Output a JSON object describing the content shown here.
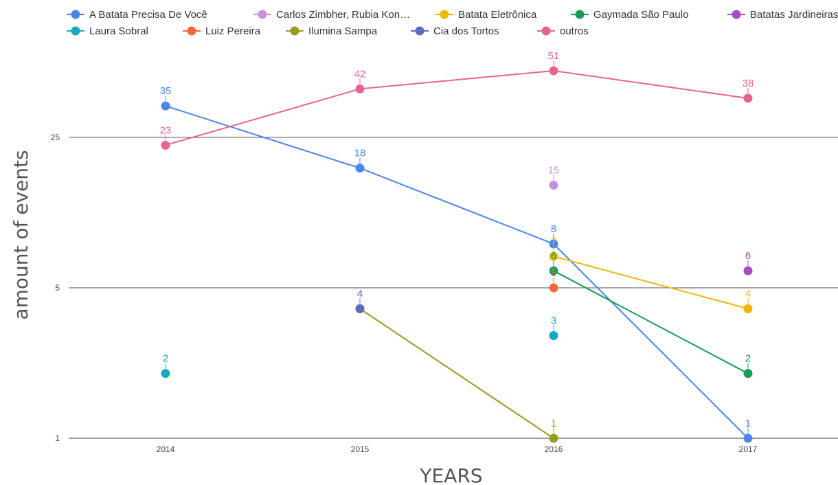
{
  "chart_data": {
    "type": "line",
    "x": [
      "2014",
      "2015",
      "2016",
      "2017"
    ],
    "xlabel": "YEARS",
    "ylabel": "amount of events",
    "yscale": "log",
    "ylim": [
      1,
      60
    ],
    "yticks": [
      1,
      5,
      25
    ],
    "grid": "horizontal lines at y ticks",
    "legend_position": "top",
    "series": [
      {
        "name": "A Batata Precisa De Você",
        "color": "#4a86e8",
        "values": [
          35,
          18,
          8,
          1
        ]
      },
      {
        "name": "Carlos Zimbher, Rubia Kon…",
        "color": "#c990dc",
        "values": [
          null,
          null,
          15,
          null
        ]
      },
      {
        "name": "Batata Eletrônica",
        "color": "#f2b705",
        "values": [
          null,
          null,
          7,
          4
        ]
      },
      {
        "name": "Gaymada São Paulo",
        "color": "#199c55",
        "values": [
          null,
          null,
          6,
          2
        ]
      },
      {
        "name": "Batatas Jardineiras",
        "color": "#a64dbf",
        "values": [
          null,
          null,
          null,
          6
        ]
      },
      {
        "name": "Laura Sobral",
        "color": "#18a8bd",
        "values": [
          2,
          null,
          3,
          null
        ]
      },
      {
        "name": "Luiz Pereira",
        "color": "#f4683b",
        "values": [
          null,
          null,
          5,
          null
        ]
      },
      {
        "name": "Ilumina Sampa",
        "color": "#9a9a1f",
        "values": [
          null,
          4,
          1,
          null
        ]
      },
      {
        "name": "Cia dos Tortos",
        "color": "#5c6bc0",
        "values": [
          null,
          4,
          null,
          null
        ]
      },
      {
        "name": "outros",
        "color": "#e8638f",
        "values": [
          23,
          42,
          51,
          38
        ]
      }
    ]
  }
}
